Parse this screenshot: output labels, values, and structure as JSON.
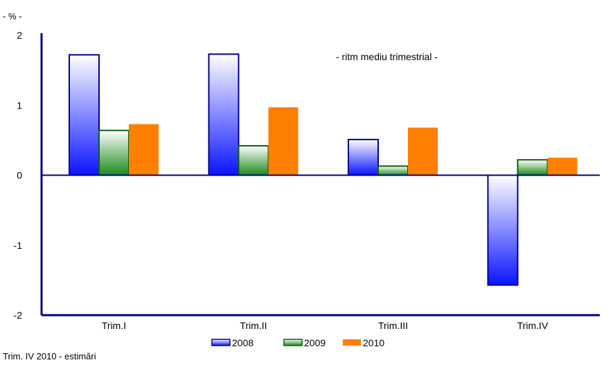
{
  "chart_data": {
    "type": "bar",
    "unit_label": "- % -",
    "annotation": "- ritm  mediu trimestrial -",
    "categories": [
      "Trim.I",
      "Trim.II",
      "Trim.III",
      "Trim.IV"
    ],
    "series": [
      {
        "name": "2008",
        "values": [
          1.72,
          1.73,
          0.51,
          -1.57
        ]
      },
      {
        "name": "2009",
        "values": [
          0.64,
          0.42,
          0.13,
          0.22
        ]
      },
      {
        "name": "2010",
        "values": [
          0.73,
          0.97,
          0.68,
          0.25
        ]
      }
    ],
    "ylim": [
      -2,
      2
    ],
    "yticks": [
      2,
      1,
      0,
      -1,
      -2
    ],
    "colors": {
      "series_2008_light": "#ffffff",
      "series_2008_dark": "#0a14ff",
      "series_2008_border": "#000090",
      "series_2009_light": "#ffffff",
      "series_2009_dark": "#1a8a1a",
      "series_2009_border": "#0b5e0b",
      "series_2010": "#ff8000",
      "axis": "#000080"
    },
    "grid": false,
    "legend": "bottom-center"
  },
  "footnote": "Trim. IV 2010 - estimări"
}
